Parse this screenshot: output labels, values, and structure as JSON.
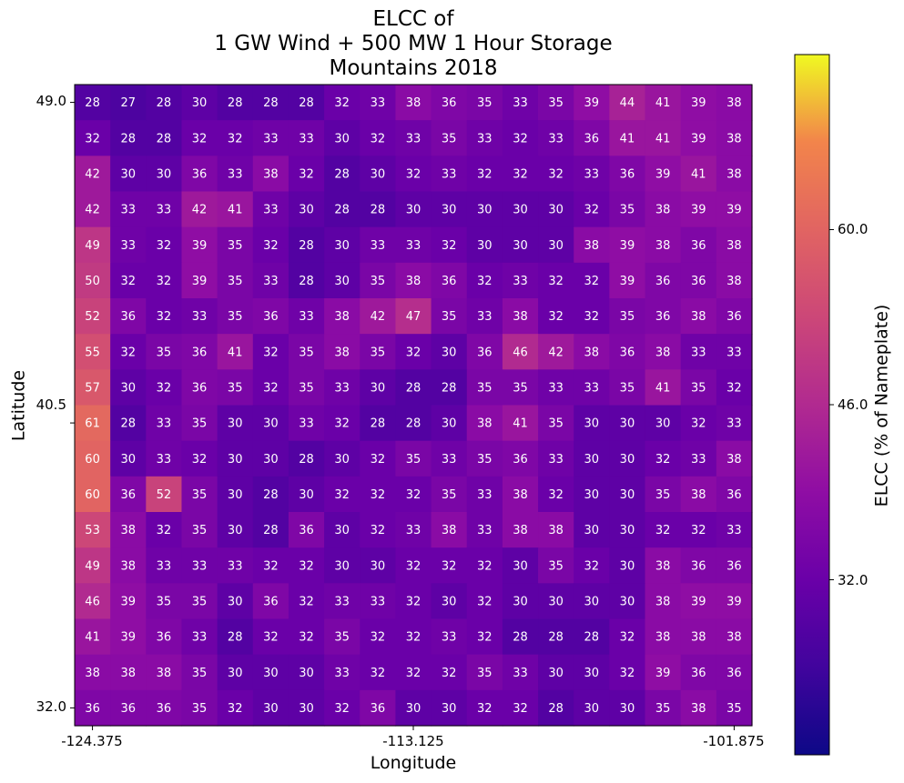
{
  "chart_data": {
    "type": "heatmap",
    "title_lines": [
      "ELCC of",
      "1 GW Wind + 500 MW 1 Hour Storage",
      "Mountains 2018"
    ],
    "xlabel": "Longitude",
    "ylabel": "Latitude",
    "x_tick_labels": [
      "-124.375",
      "-113.125",
      "-101.875"
    ],
    "y_tick_labels": [
      "49.0",
      "40.5",
      "32.0"
    ],
    "colorbar": {
      "label": "ELCC (% of Nameplate)",
      "tick_labels": [
        "60.0",
        "46.0",
        "32.0"
      ],
      "tick_values": [
        60,
        46,
        32
      ],
      "range": [
        18,
        74
      ],
      "colormap": "plasma"
    },
    "rows_top_to_bottom": [
      [
        28,
        27,
        28,
        30,
        28,
        28,
        28,
        32,
        33,
        38,
        36,
        35,
        33,
        35,
        39,
        44,
        41,
        39,
        38
      ],
      [
        32,
        28,
        28,
        32,
        32,
        33,
        33,
        30,
        32,
        33,
        35,
        33,
        32,
        33,
        36,
        41,
        41,
        39,
        38
      ],
      [
        42,
        30,
        30,
        36,
        33,
        38,
        32,
        28,
        30,
        32,
        33,
        32,
        32,
        32,
        33,
        36,
        39,
        41,
        38
      ],
      [
        42,
        33,
        33,
        42,
        41,
        33,
        30,
        28,
        28,
        30,
        30,
        30,
        30,
        30,
        32,
        35,
        38,
        39,
        39
      ],
      [
        49,
        33,
        32,
        39,
        35,
        32,
        28,
        30,
        33,
        33,
        32,
        30,
        30,
        30,
        38,
        39,
        38,
        36,
        38
      ],
      [
        50,
        32,
        32,
        39,
        35,
        33,
        28,
        30,
        35,
        38,
        36,
        32,
        33,
        32,
        32,
        39,
        36,
        36,
        38
      ],
      [
        52,
        36,
        32,
        33,
        35,
        36,
        33,
        38,
        42,
        47,
        35,
        33,
        38,
        32,
        32,
        35,
        36,
        38,
        36
      ],
      [
        55,
        32,
        35,
        36,
        41,
        32,
        35,
        38,
        35,
        32,
        30,
        36,
        46,
        42,
        38,
        36,
        38,
        33,
        33
      ],
      [
        57,
        30,
        32,
        36,
        35,
        32,
        35,
        33,
        30,
        28,
        28,
        35,
        35,
        33,
        33,
        35,
        41,
        35,
        32
      ],
      [
        61,
        28,
        33,
        35,
        30,
        30,
        33,
        32,
        28,
        28,
        30,
        38,
        41,
        35,
        30,
        30,
        30,
        32,
        33
      ],
      [
        60,
        30,
        33,
        32,
        30,
        30,
        28,
        30,
        32,
        35,
        33,
        35,
        36,
        33,
        30,
        30,
        32,
        33,
        38
      ],
      [
        60,
        36,
        52,
        35,
        30,
        28,
        30,
        32,
        32,
        32,
        35,
        33,
        38,
        32,
        30,
        30,
        35,
        38,
        36
      ],
      [
        53,
        38,
        32,
        35,
        30,
        28,
        36,
        30,
        32,
        33,
        38,
        33,
        38,
        38,
        30,
        30,
        32,
        32,
        33
      ],
      [
        49,
        38,
        33,
        33,
        33,
        32,
        32,
        30,
        30,
        32,
        32,
        32,
        30,
        35,
        32,
        30,
        38,
        36,
        36
      ],
      [
        46,
        39,
        35,
        35,
        30,
        36,
        32,
        33,
        33,
        32,
        30,
        32,
        30,
        30,
        30,
        30,
        38,
        39,
        39
      ],
      [
        41,
        39,
        36,
        33,
        28,
        32,
        32,
        35,
        32,
        32,
        33,
        32,
        28,
        28,
        28,
        32,
        38,
        38,
        38
      ],
      [
        38,
        38,
        38,
        35,
        30,
        30,
        30,
        33,
        32,
        32,
        32,
        35,
        33,
        30,
        30,
        32,
        39,
        36,
        36
      ],
      [
        36,
        36,
        36,
        35,
        32,
        30,
        30,
        32,
        36,
        30,
        30,
        32,
        32,
        28,
        30,
        30,
        35,
        38,
        35
      ]
    ]
  }
}
